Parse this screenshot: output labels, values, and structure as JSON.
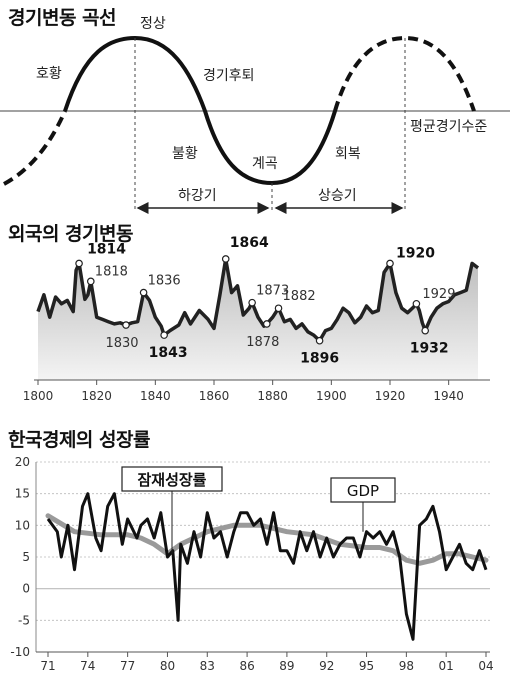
{
  "cycle_panel": {
    "title": "경기변동 곡선",
    "labels": {
      "boom": "호황",
      "peak": "정상",
      "recession": "경기후퇴",
      "average": "평균경기수준",
      "slump": "불황",
      "trough": "계곡",
      "recovery": "회복",
      "down_phase": "하강기",
      "up_phase": "상승기"
    }
  },
  "chart_data": [
    {
      "type": "area",
      "title": "외국의 경기변동",
      "xlim": [
        1800,
        1950
      ],
      "x_ticks": [
        "1800",
        "1820",
        "1840",
        "1860",
        "1880",
        "1900",
        "1920",
        "1940"
      ],
      "labeled_points": [
        {
          "year": "1814",
          "pos": "peak",
          "bold": true
        },
        {
          "year": "1818",
          "pos": "peak",
          "bold": false
        },
        {
          "year": "1830",
          "pos": "trough",
          "bold": false
        },
        {
          "year": "1836",
          "pos": "peak",
          "bold": false
        },
        {
          "year": "1843",
          "pos": "trough",
          "bold": true
        },
        {
          "year": "1864",
          "pos": "peak",
          "bold": true
        },
        {
          "year": "1873",
          "pos": "peak",
          "bold": false
        },
        {
          "year": "1878",
          "pos": "trough",
          "bold": false
        },
        {
          "year": "1882",
          "pos": "peak",
          "bold": false
        },
        {
          "year": "1896",
          "pos": "trough",
          "bold": true
        },
        {
          "year": "1920",
          "pos": "peak",
          "bold": true
        },
        {
          "year": "1929",
          "pos": "peak",
          "bold": false
        },
        {
          "year": "1932",
          "pos": "trough",
          "bold": true
        }
      ],
      "series": [
        {
          "x": [
            1800,
            1802,
            1804,
            1806,
            1808,
            1810,
            1812,
            1813,
            1814,
            1816,
            1817,
            1818,
            1820,
            1822,
            1824,
            1826,
            1828,
            1830,
            1832,
            1834,
            1836,
            1838,
            1840,
            1842,
            1843,
            1845,
            1848,
            1850,
            1852,
            1855,
            1858,
            1860,
            1862,
            1864,
            1866,
            1868,
            1870,
            1872,
            1873,
            1875,
            1877,
            1878,
            1880,
            1882,
            1884,
            1886,
            1888,
            1890,
            1892,
            1894,
            1896,
            1898,
            1900,
            1902,
            1904,
            1906,
            1908,
            1910,
            1912,
            1914,
            1916,
            1918,
            1919,
            1920,
            1922,
            1924,
            1926,
            1928,
            1929,
            1930,
            1931,
            1932,
            1934,
            1936,
            1938,
            1940,
            1942,
            1944,
            1946,
            1948,
            1950
          ],
          "y": [
            45,
            60,
            40,
            58,
            52,
            55,
            45,
            82,
            88,
            56,
            60,
            72,
            40,
            38,
            36,
            34,
            35,
            33,
            35,
            36,
            62,
            55,
            40,
            32,
            24,
            28,
            33,
            44,
            34,
            46,
            38,
            30,
            60,
            92,
            62,
            68,
            42,
            48,
            53,
            40,
            32,
            34,
            40,
            48,
            36,
            38,
            30,
            34,
            27,
            24,
            19,
            28,
            30,
            38,
            48,
            44,
            35,
            40,
            50,
            44,
            46,
            80,
            84,
            88,
            62,
            48,
            44,
            49,
            52,
            46,
            35,
            28,
            40,
            48,
            52,
            54,
            60,
            62,
            64,
            88,
            84
          ]
        }
      ]
    },
    {
      "type": "line",
      "title": "한국경제의 성장률",
      "ylim": [
        -10,
        20
      ],
      "y_ticks": [
        "20",
        "15",
        "10",
        "5",
        "0",
        "-5",
        "-10"
      ],
      "x_ticks": [
        "71",
        "74",
        "77",
        "80",
        "83",
        "86",
        "89",
        "92",
        "95",
        "98",
        "01",
        "04"
      ],
      "series": [
        {
          "name": "GDP",
          "x": [
            1971,
            1971.7,
            1972,
            1972.5,
            1973,
            1973.6,
            1974,
            1974.6,
            1975,
            1975.5,
            1976,
            1976.6,
            1977,
            1977.7,
            1978,
            1978.5,
            1979,
            1979.5,
            1980,
            1980.4,
            1980.8,
            1981,
            1981.5,
            1982,
            1982.5,
            1983,
            1983.5,
            1984,
            1984.5,
            1985,
            1985.5,
            1986,
            1986.5,
            1987,
            1987.5,
            1988,
            1988.5,
            1989,
            1989.5,
            1990,
            1990.5,
            1991,
            1991.5,
            1992,
            1992.5,
            1993,
            1993.5,
            1994,
            1994.5,
            1995,
            1995.5,
            1996,
            1996.5,
            1997,
            1997.5,
            1998,
            1998.5,
            1999,
            1999.5,
            2000,
            2000.5,
            2001,
            2001.5,
            2002,
            2002.5,
            2003,
            2003.5,
            2004
          ],
          "y": [
            11,
            9,
            5,
            10,
            3,
            13,
            15,
            8,
            6,
            13,
            15,
            7,
            11,
            8,
            10,
            11,
            8,
            12,
            5,
            6,
            -5,
            7,
            4,
            9,
            5,
            12,
            8,
            9,
            5,
            9,
            12,
            12,
            10,
            11,
            7,
            12,
            6,
            6,
            4,
            9,
            6,
            9,
            5,
            8,
            5,
            7,
            8,
            8,
            5,
            9,
            8,
            9,
            7,
            9,
            5,
            -4,
            -8,
            10,
            11,
            13,
            9,
            3,
            5,
            7,
            4,
            3,
            6,
            3
          ]
        },
        {
          "name": "잠재성장률",
          "x": [
            1971,
            1973,
            1975,
            1977,
            1978,
            1979,
            1980,
            1981,
            1983,
            1985,
            1987,
            1989,
            1991,
            1993,
            1995,
            1996,
            1997,
            1998,
            1999,
            2000,
            2001,
            2002,
            2003,
            2004
          ],
          "y": [
            11.5,
            9,
            8.5,
            8.5,
            8,
            7,
            5.5,
            7,
            9,
            10,
            10,
            9,
            8.5,
            7,
            6.5,
            6.5,
            6,
            4.5,
            4,
            4.5,
            5.5,
            5.5,
            5,
            4.5
          ]
        }
      ],
      "callouts": {
        "potential": "잠재성장률",
        "gdp": "GDP"
      }
    }
  ]
}
